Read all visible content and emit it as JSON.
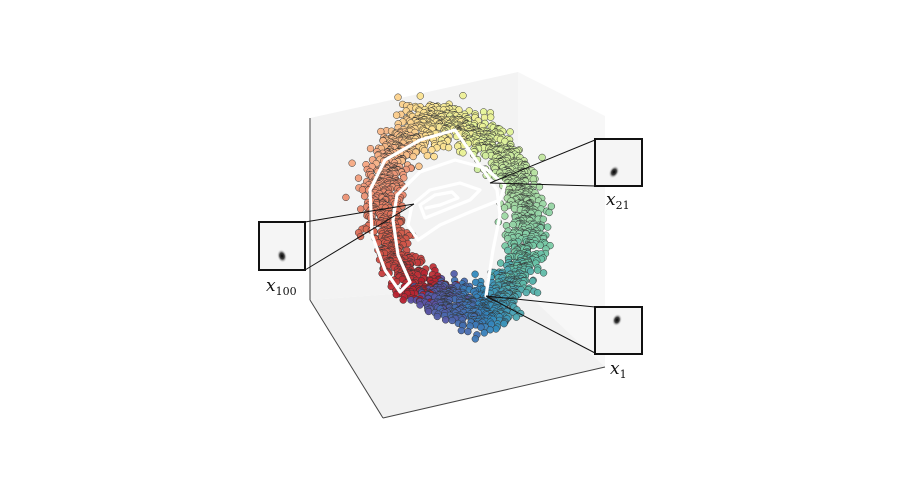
{
  "labels": {
    "x100": {
      "main": "x",
      "sub": "100"
    },
    "x21": {
      "main": "x",
      "sub": "21"
    },
    "x1": {
      "main": "x",
      "sub": "1"
    }
  },
  "colors": {
    "pane_left": "#f3f3f3",
    "pane_right": "#f7f7f7",
    "pane_floor": "#f1f1f1",
    "axis": "#444444",
    "path": "#ffffff",
    "inset_bg": "#f5f5f5",
    "inset_border": "#111111",
    "scatter_scale": [
      "#b2182b",
      "#d6604d",
      "#f4a582",
      "#fee090",
      "#e6f598",
      "#abdda4",
      "#66c2a5",
      "#3288bd",
      "#5e4fa2"
    ]
  },
  "icons": {
    "inset_x100": "gaussian-blob-icon",
    "inset_x21": "gaussian-blob-icon",
    "inset_x1": "gaussian-blob-icon"
  }
}
